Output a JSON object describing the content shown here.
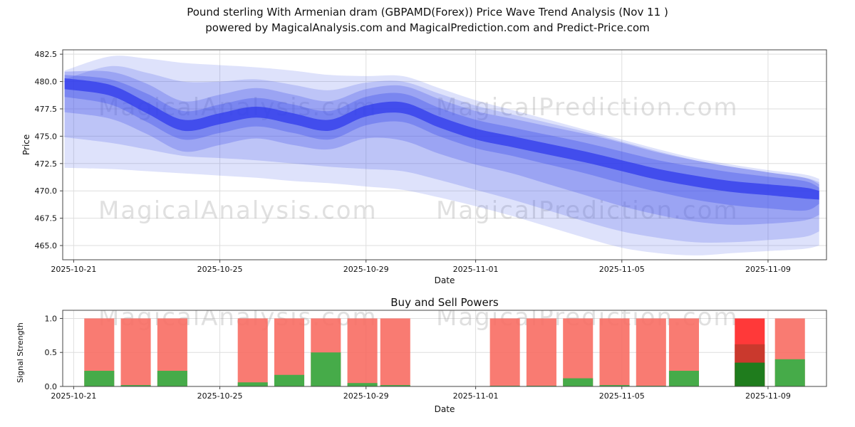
{
  "title": {
    "line1": "Pound sterling With Armenian dram (GBPAMD(Forex)) Price Wave Trend Analysis (Nov 11 )",
    "line2": "powered by MagicalAnalysis.com and MagicalPrediction.com and Predict-Price.com"
  },
  "watermarks": {
    "left": "MagicalAnalysis.com",
    "right": "MagicalPrediction.com",
    "color": "rgba(130,130,130,0.25)"
  },
  "chart_data": [
    {
      "type": "area",
      "name": "price-wave-trend",
      "xlabel": "Date",
      "ylabel": "Price",
      "grid": true,
      "ylim": [
        463.7,
        482.9
      ],
      "xlim_days": [
        -0.3,
        20.6
      ],
      "y_ticks": [
        482.5,
        480.0,
        477.5,
        475.0,
        472.5,
        470.0,
        467.5,
        465.0
      ],
      "x_tick_labels": [
        "2025-10-21",
        "2025-10-25",
        "2025-10-29",
        "2025-11-01",
        "2025-11-05",
        "2025-11-09"
      ],
      "x_tick_days": [
        0,
        4,
        8,
        11,
        15,
        19
      ],
      "band_base_date": "2025-10-21",
      "band_days": [
        -0.25,
        1,
        2,
        3,
        4,
        5,
        6,
        7,
        8,
        9,
        10,
        11,
        12,
        13,
        14,
        15,
        16,
        17,
        18,
        19,
        20,
        20.4
      ],
      "bands": [
        {
          "name": "outer-band",
          "color": "rgba(90,110,235,0.20)",
          "upper": [
            481.0,
            482.3,
            482.1,
            481.7,
            481.5,
            481.3,
            481.0,
            480.6,
            480.5,
            480.5,
            479.4,
            478.3,
            477.4,
            476.5,
            475.6,
            474.7,
            473.8,
            473.0,
            472.4,
            471.9,
            471.5,
            471.1
          ],
          "lower": [
            472.1,
            472.0,
            471.8,
            471.6,
            471.4,
            471.2,
            470.9,
            470.7,
            470.4,
            470.1,
            469.4,
            468.6,
            467.7,
            466.7,
            465.7,
            464.8,
            464.3,
            464.1,
            464.3,
            464.5,
            464.7,
            465.0
          ]
        },
        {
          "name": "wide-band",
          "color": "rgba(85,100,235,0.24)",
          "upper": [
            480.2,
            481.4,
            480.8,
            480.0,
            480.0,
            480.2,
            479.7,
            479.2,
            479.9,
            480.0,
            478.9,
            477.8,
            477.0,
            476.2,
            475.4,
            474.5,
            473.6,
            472.8,
            472.2,
            471.7,
            471.2,
            470.8
          ],
          "lower": [
            474.9,
            474.4,
            473.8,
            473.2,
            473.0,
            472.8,
            472.5,
            472.2,
            472.0,
            471.8,
            471.0,
            470.1,
            469.2,
            468.2,
            467.2,
            466.3,
            465.7,
            465.3,
            465.3,
            465.5,
            465.8,
            466.3
          ]
        },
        {
          "name": "mid-band",
          "color": "rgba(75,90,235,0.30)",
          "upper": [
            480.9,
            480.9,
            479.8,
            478.2,
            478.8,
            479.4,
            478.8,
            478.2,
            479.3,
            479.6,
            478.4,
            477.3,
            476.6,
            475.9,
            475.2,
            474.4,
            473.5,
            472.8,
            472.2,
            471.7,
            471.2,
            470.6
          ],
          "lower": [
            477.2,
            476.6,
            475.2,
            473.6,
            474.2,
            474.8,
            474.2,
            473.8,
            474.8,
            474.6,
            473.4,
            472.4,
            471.6,
            470.6,
            469.6,
            468.6,
            467.8,
            467.2,
            466.9,
            467.0,
            467.3,
            467.8
          ]
        },
        {
          "name": "inner-band",
          "color": "rgba(65,80,235,0.36)",
          "upper": [
            480.6,
            480.2,
            478.9,
            477.3,
            477.9,
            478.5,
            477.9,
            477.3,
            478.6,
            478.9,
            477.6,
            476.5,
            475.8,
            475.1,
            474.4,
            473.6,
            472.8,
            472.2,
            471.7,
            471.3,
            470.9,
            470.3
          ],
          "lower": [
            478.6,
            477.9,
            476.3,
            474.7,
            475.3,
            475.9,
            475.3,
            474.7,
            476.0,
            476.3,
            475.0,
            473.9,
            473.2,
            472.4,
            471.6,
            470.7,
            469.9,
            469.2,
            468.7,
            468.4,
            468.2,
            468.8
          ]
        },
        {
          "name": "center-trend-band",
          "color": "rgba(45,55,235,0.72)",
          "upper": [
            480.3,
            479.7,
            478.1,
            476.5,
            477.1,
            477.7,
            477.1,
            476.5,
            477.8,
            478.1,
            476.8,
            475.7,
            475.0,
            474.3,
            473.6,
            472.8,
            472.0,
            471.4,
            470.9,
            470.6,
            470.3,
            470.0
          ],
          "lower": [
            479.3,
            478.7,
            477.1,
            475.5,
            476.1,
            476.7,
            476.1,
            475.5,
            476.8,
            477.1,
            475.8,
            474.7,
            474.0,
            473.3,
            472.6,
            471.8,
            471.0,
            470.4,
            469.9,
            469.6,
            469.3,
            469.2
          ]
        }
      ]
    },
    {
      "type": "bar",
      "name": "buy-sell-powers",
      "title": "Buy and Sell Powers",
      "xlabel": "Date",
      "ylabel": "Signal Strength",
      "grid": true,
      "ylim": [
        0,
        1.12
      ],
      "xlim_days": [
        -0.3,
        20.6
      ],
      "y_ticks": [
        0.0,
        0.5,
        1.0
      ],
      "x_tick_labels": [
        "2025-10-21",
        "2025-10-25",
        "2025-10-29",
        "2025-11-01",
        "2025-11-05",
        "2025-11-09"
      ],
      "x_tick_days": [
        0,
        4,
        8,
        11,
        15,
        19
      ],
      "bar_width_days": 0.82,
      "sell_color": "#f8695f",
      "buy_color": "#3cae47",
      "bars": [
        {
          "date": "2025-10-22",
          "day": 0.7,
          "sell": 1.0,
          "buy": 0.23
        },
        {
          "date": "2025-10-23",
          "day": 1.7,
          "sell": 1.0,
          "buy": 0.02
        },
        {
          "date": "2025-10-24",
          "day": 2.7,
          "sell": 1.0,
          "buy": 0.23
        },
        {
          "date": "2025-10-26",
          "day": 4.9,
          "sell": 1.0,
          "buy": 0.06
        },
        {
          "date": "2025-10-27",
          "day": 5.9,
          "sell": 1.0,
          "buy": 0.17
        },
        {
          "date": "2025-10-28",
          "day": 6.9,
          "sell": 1.0,
          "buy": 0.5
        },
        {
          "date": "2025-10-29",
          "day": 7.9,
          "sell": 1.0,
          "buy": 0.05
        },
        {
          "date": "2025-10-30",
          "day": 8.8,
          "sell": 1.0,
          "buy": 0.02
        },
        {
          "date": "2025-11-02",
          "day": 11.8,
          "sell": 1.0,
          "buy": 0.01
        },
        {
          "date": "2025-11-03",
          "day": 12.8,
          "sell": 1.0,
          "buy": 0.01
        },
        {
          "date": "2025-11-04",
          "day": 13.8,
          "sell": 1.0,
          "buy": 0.12
        },
        {
          "date": "2025-11-05",
          "day": 14.8,
          "sell": 1.0,
          "buy": 0.02
        },
        {
          "date": "2025-11-06",
          "day": 15.8,
          "sell": 1.0,
          "buy": 0.01
        },
        {
          "date": "2025-11-07",
          "day": 16.7,
          "sell": 1.0,
          "buy": 0.23
        },
        {
          "date": "2025-11-09",
          "day": 18.5,
          "sell": 1.0,
          "buy": 0.35,
          "sell_secondary": 0.62,
          "sell_color": "#ff1e1e",
          "sell_secondary_color": "#c43a2c",
          "buy_color": "#157f1c"
        },
        {
          "date": "2025-11-10",
          "day": 19.6,
          "sell": 1.0,
          "buy": 0.4
        }
      ]
    }
  ]
}
